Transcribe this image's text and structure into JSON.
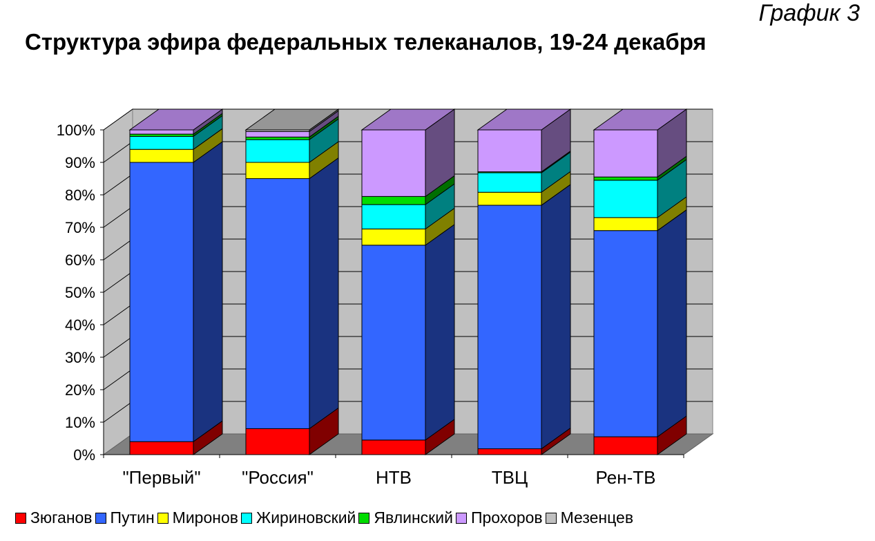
{
  "graph_label": "График 3",
  "chart_data": {
    "type": "bar",
    "stacked": "percent",
    "three_d": true,
    "title": "Структура эфира федеральных телеканалов, 19-24 декабря",
    "xlabel": "",
    "ylabel": "",
    "ylim": [
      0,
      100
    ],
    "yticks": [
      "0%",
      "10%",
      "20%",
      "30%",
      "40%",
      "50%",
      "60%",
      "70%",
      "80%",
      "90%",
      "100%"
    ],
    "grid": true,
    "legend_position": "bottom",
    "categories": [
      "\"Первый\"",
      "\"Россия\"",
      "НТВ",
      "ТВЦ",
      "Рен-ТВ"
    ],
    "series": [
      {
        "name": "Зюганов",
        "color": "#ff0000",
        "values": [
          4,
          8,
          4.5,
          1.8,
          5.5
        ]
      },
      {
        "name": "Путин",
        "color": "#3366ff",
        "values": [
          86,
          77,
          60,
          75,
          63.5
        ]
      },
      {
        "name": "Миронов",
        "color": "#ffff00",
        "values": [
          4,
          5,
          5,
          4,
          4
        ]
      },
      {
        "name": "Жириновский",
        "color": "#00ffff",
        "values": [
          4,
          7,
          7.5,
          6,
          11.5
        ]
      },
      {
        "name": "Явлинский",
        "color": "#00dd00",
        "values": [
          0.7,
          0.8,
          2.5,
          0.3,
          1
        ]
      },
      {
        "name": "Прохоров",
        "color": "#cc99ff",
        "values": [
          1.3,
          1.7,
          20.5,
          12.9,
          14.5
        ]
      },
      {
        "name": "Мезенцев",
        "color": "#c0c0c0",
        "values": [
          0,
          0.5,
          0,
          0,
          0
        ]
      }
    ]
  }
}
